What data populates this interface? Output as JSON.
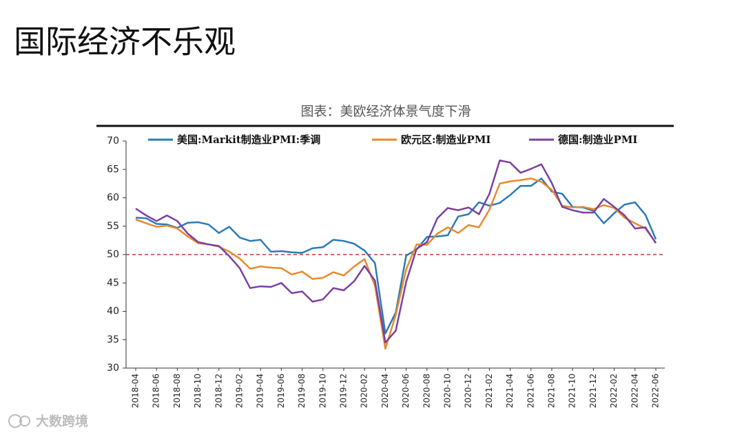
{
  "slide_title": "国际经济不乐观",
  "watermark": "大数跨境",
  "chart_data": {
    "type": "line",
    "title": "图表：美欧经济体景气度下滑",
    "categories": [
      "2018-04",
      null,
      "2018-06",
      null,
      "2018-08",
      null,
      "2018-10",
      null,
      "2018-12",
      null,
      "2019-02",
      null,
      "2019-04",
      null,
      "2019-06",
      null,
      "2019-08",
      null,
      "2019-10",
      null,
      "2019-12",
      null,
      "2020-02",
      null,
      "2020-04",
      null,
      "2020-06",
      null,
      "2020-08",
      null,
      "2020-10",
      null,
      "2020-12",
      null,
      "2021-02",
      null,
      "2021-04",
      null,
      "2021-06",
      null,
      "2021-08",
      null,
      "2021-10",
      null,
      "2021-12",
      null,
      "2022-02",
      null,
      "2022-04",
      null,
      "2022-06"
    ],
    "series": [
      {
        "name": "美国:Markit制造业PMI:季调",
        "color": "#2a7ab5",
        "values": [
          56.5,
          56.4,
          55.4,
          55.3,
          54.7,
          55.6,
          55.7,
          55.3,
          53.8,
          54.9,
          53.0,
          52.4,
          52.6,
          50.5,
          50.6,
          50.4,
          50.3,
          51.1,
          51.3,
          52.6,
          52.4,
          51.9,
          50.7,
          48.5,
          36.1,
          39.8,
          49.8,
          50.9,
          53.1,
          53.2,
          53.4,
          56.7,
          57.1,
          59.2,
          58.6,
          59.1,
          60.5,
          62.1,
          62.1,
          63.4,
          61.1,
          60.7,
          58.4,
          58.3,
          57.7,
          55.5,
          57.3,
          58.8,
          59.2,
          57.0,
          52.7
        ]
      },
      {
        "name": "欧元区:制造业PMI",
        "color": "#e8892b",
        "values": [
          56.2,
          55.5,
          54.9,
          55.1,
          54.6,
          53.2,
          52.0,
          51.8,
          51.4,
          50.5,
          49.3,
          47.5,
          47.9,
          47.7,
          47.6,
          46.5,
          47.0,
          45.7,
          45.9,
          46.9,
          46.3,
          47.9,
          49.2,
          44.5,
          33.4,
          39.4,
          47.4,
          51.8,
          51.7,
          53.7,
          54.8,
          53.8,
          55.2,
          54.8,
          57.9,
          62.5,
          62.9,
          63.1,
          63.4,
          62.8,
          61.4,
          58.6,
          58.3,
          58.4,
          58.0,
          58.7,
          58.2,
          56.5,
          55.5,
          54.6,
          52.1
        ]
      },
      {
        "name": "德国:制造业PMI",
        "color": "#7b3fa0",
        "values": [
          58.1,
          56.9,
          55.9,
          56.9,
          55.9,
          53.7,
          52.2,
          51.8,
          51.5,
          49.7,
          47.6,
          44.1,
          44.4,
          44.3,
          45.0,
          43.2,
          43.5,
          41.7,
          42.1,
          44.1,
          43.7,
          45.3,
          48.0,
          45.4,
          34.5,
          36.6,
          45.2,
          51.0,
          52.2,
          56.4,
          58.2,
          57.8,
          58.3,
          57.1,
          60.7,
          66.6,
          66.2,
          64.4,
          65.1,
          65.9,
          62.6,
          58.4,
          57.8,
          57.4,
          57.4,
          59.8,
          58.4,
          56.9,
          54.6,
          54.8,
          52.0
        ]
      }
    ],
    "ylim": [
      30,
      70
    ],
    "yticks": [
      30,
      35,
      40,
      45,
      50,
      55,
      60,
      65,
      70
    ],
    "hline": 50,
    "hline_color": "#c0392b",
    "grid": false
  }
}
